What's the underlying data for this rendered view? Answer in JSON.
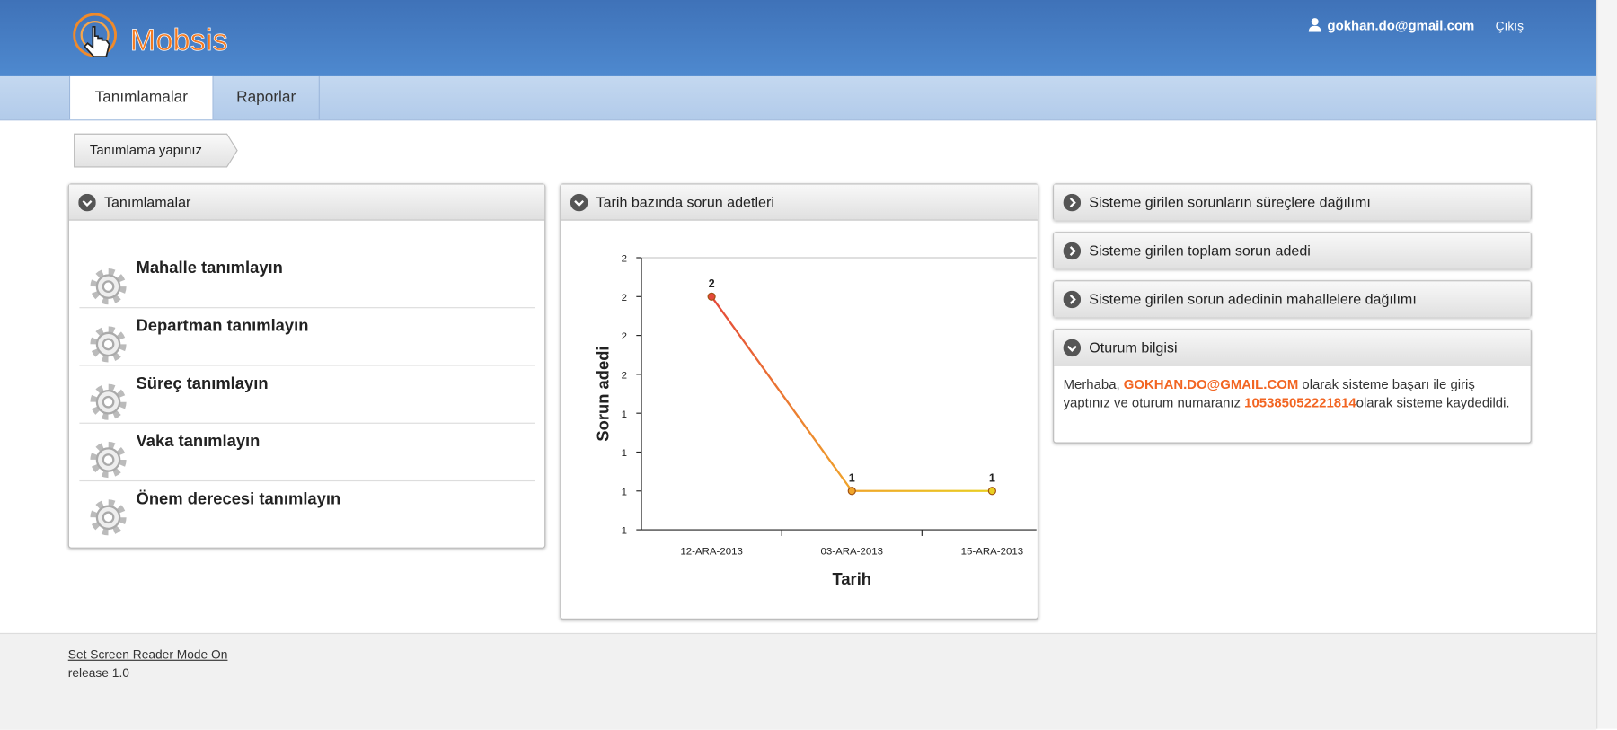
{
  "header": {
    "logo": "Mobsis",
    "user": "gokhan.do@gmail.com",
    "logout": "Çıkış"
  },
  "tabs": [
    "Tanımlamalar",
    "Raporlar"
  ],
  "breadcrumb": "Tanımlama yapınız",
  "definitions_panel": {
    "title": "Tanımlamalar",
    "items": [
      "Mahalle tanımlayın",
      "Departman tanımlayın",
      "Süreç tanımlayın",
      "Vaka tanımlayın",
      "Önem derecesi tanımlayın"
    ]
  },
  "chart_panel": {
    "title": "Tarih bazında sorun adetleri"
  },
  "chart_data": {
    "type": "line",
    "xlabel": "Tarih",
    "ylabel": "Sorun adedi",
    "categories": [
      "12-ARA-2013",
      "03-ARA-2013",
      "15-ARA-2013"
    ],
    "series": [
      {
        "values": [
          2,
          1,
          1
        ],
        "point_colors": [
          "#e5483a",
          "#f0a52a",
          "#e9cf22"
        ]
      }
    ],
    "ylim": [
      0.8,
      2.2
    ],
    "yticks": [
      {
        "value": 0.8,
        "label": "1"
      },
      1,
      {
        "value": 1.2,
        "label": "1"
      },
      {
        "value": 1.4,
        "label": "1"
      },
      {
        "value": 1.6,
        "label": "2"
      },
      {
        "value": 1.8,
        "label": "2"
      },
      2,
      {
        "value": 2.2,
        "label": "2"
      }
    ],
    "grid": false
  },
  "side_panels": [
    "Sisteme girilen sorunların süreçlere dağılımı",
    "Sisteme girilen toplam sorun adedi",
    "Sisteme girilen sorun adedinin mahallelere dağılımı"
  ],
  "session": {
    "title": "Oturum bilgisi",
    "text_parts": [
      "Merhaba, ",
      "GOKHAN.DO@GMAIL.COM",
      " olarak sisteme başarı ile giriş yaptınız ve oturum numaranız ",
      "105385052221814",
      "olarak sisteme kaydedildi."
    ]
  },
  "footer": {
    "link": "Set Screen Reader Mode On",
    "release": "release 1.0"
  }
}
